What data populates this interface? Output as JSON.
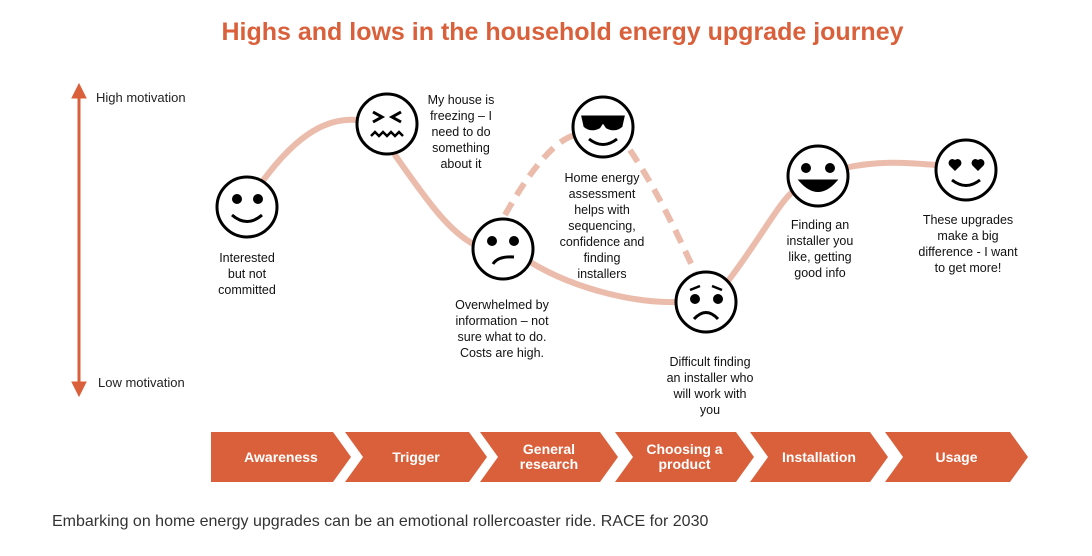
{
  "title": "Highs and lows in the household energy upgrade journey",
  "axis": {
    "high": "High motivation",
    "low": "Low motivation"
  },
  "moments": [
    {
      "face": "smile-face-icon",
      "text": "Interested but not committed"
    },
    {
      "face": "distressed-face-icon",
      "text": "My house is freezing – I need to do something about it"
    },
    {
      "face": "confused-face-icon",
      "text": "Overwhelmed by information – not sure what to do. Costs are high."
    },
    {
      "face": "sunglasses-face-icon",
      "text": "Home energy assessment helps with sequencing, confidence and finding installers"
    },
    {
      "face": "worried-face-icon",
      "text": "Difficult finding an installer who will work with you"
    },
    {
      "face": "grin-face-icon",
      "text": "Finding an installer you like, getting good info"
    },
    {
      "face": "heart-eyes-face-icon",
      "text": "These upgrades make a big difference - I want to get more!"
    }
  ],
  "stages": [
    "Awareness",
    "Trigger",
    "General research",
    "Choosing a product",
    "Installation",
    "Usage"
  ],
  "caption": "Embarking on home energy upgrades can be an emotional rollercoaster ride. RACE for 2030",
  "colors": {
    "accent": "#d9603b",
    "curve": "#ebbcab"
  }
}
